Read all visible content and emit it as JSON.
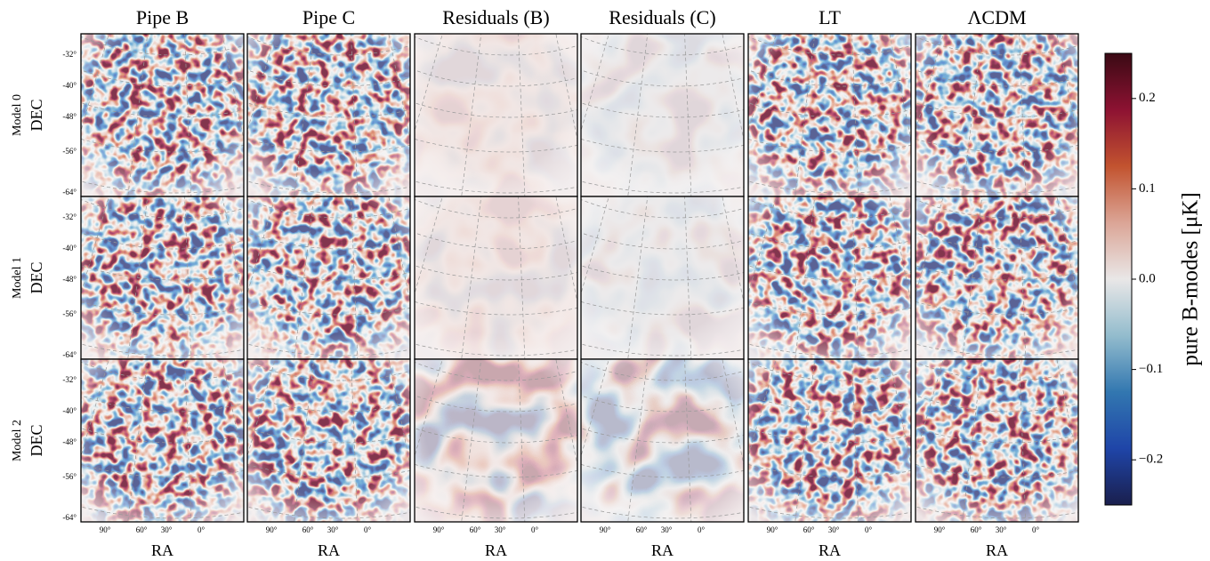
{
  "chart_data": {
    "type": "map-grid",
    "columns": [
      "Pipe B",
      "Pipe C",
      "Residuals (B)",
      "Residuals (C)",
      "LT",
      "ΛCDM"
    ],
    "rows": [
      "Model 0",
      "Model 1",
      "Model 2"
    ],
    "y_label": "DEC",
    "x_label": "RA",
    "dec_tick_labels": [
      "-32°",
      "-40°",
      "-48°",
      "-56°",
      "-64°"
    ],
    "ra_tick_labels": [
      "90°",
      "60°",
      "30°",
      "0°"
    ],
    "colorbar": {
      "label": "pure B-modes [μK]",
      "ylim": [
        -0.25,
        0.25
      ],
      "yticks": [
        0.2,
        0.1,
        {
          "value": 0,
          "label": "0.0"
        },
        {
          "value": -0.1,
          "label": "−0.1"
        },
        {
          "value": -0.2,
          "label": "−0.2"
        }
      ],
      "colormap": [
        "#1a1f4d",
        "#1f45a8",
        "#3277b0",
        "#93bccd",
        "#e9e7e7",
        "#dba596",
        "#c2532f",
        "#8d1232",
        "#3a0a14"
      ]
    }
  }
}
